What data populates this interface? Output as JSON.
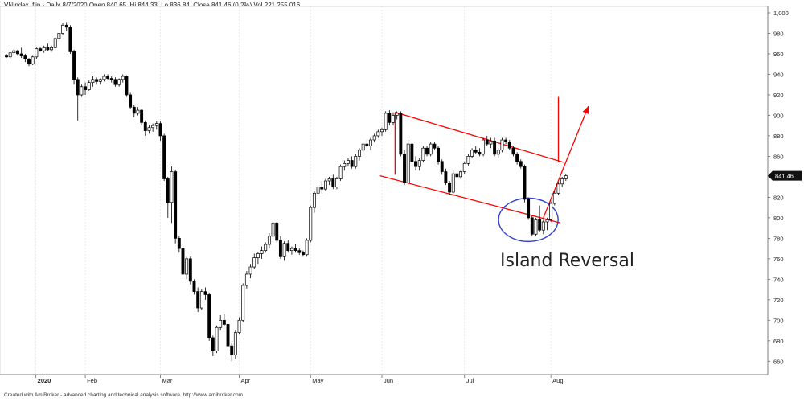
{
  "header": {
    "text": "VNIndex_fiin - Daily 8/7/2020 Open 840.65, Hi 844.33, Lo 836.84, Close 841.46 (0.2%) Vol 221,255,016"
  },
  "footer": {
    "text": "Created with AmiBroker - advanced charting and technical analysis software. http://www.amibroker.com"
  },
  "chart_data": {
    "type": "candlestick",
    "symbol": "VNIndex_fiin",
    "y_ticks": [
      "1,000",
      "980",
      "960",
      "940",
      "920",
      "900",
      "880",
      "860",
      "840",
      "820",
      "800",
      "780",
      "760",
      "740",
      "720",
      "700",
      "680",
      "660"
    ],
    "x_labels": [
      {
        "label": "2020",
        "index": 4
      },
      {
        "label": "Feb",
        "index": 21
      },
      {
        "label": "Mar",
        "index": 41
      },
      {
        "label": "Apr",
        "index": 62
      },
      {
        "label": "May",
        "index": 81
      },
      {
        "label": "Jun",
        "index": 100
      },
      {
        "label": "Jul",
        "index": 122
      },
      {
        "label": "Aug",
        "index": 145
      }
    ],
    "ylim": [
      650,
      1000
    ],
    "last_price_label": "841.46",
    "annotation": "Island Reversal",
    "colors": {
      "up": "#ffffff",
      "down": "#000000",
      "trendline": "#ff0000",
      "circle": "#3344cc"
    },
    "candles": [
      [
        958,
        960,
        956,
        957
      ],
      [
        957,
        962,
        955,
        961
      ],
      [
        961,
        965,
        958,
        963
      ],
      [
        963,
        964,
        958,
        960
      ],
      [
        960,
        966,
        956,
        958
      ],
      [
        958,
        960,
        952,
        955
      ],
      [
        955,
        956,
        948,
        950
      ],
      [
        950,
        958,
        949,
        957
      ],
      [
        957,
        966,
        955,
        965
      ],
      [
        965,
        967,
        962,
        963
      ],
      [
        963,
        968,
        961,
        966
      ],
      [
        966,
        970,
        963,
        964
      ],
      [
        964,
        968,
        962,
        966
      ],
      [
        966,
        976,
        965,
        975
      ],
      [
        975,
        981,
        972,
        980
      ],
      [
        980,
        990,
        978,
        988
      ],
      [
        988,
        991,
        982,
        986
      ],
      [
        986,
        988,
        960,
        962
      ],
      [
        962,
        964,
        930,
        935
      ],
      [
        935,
        937,
        895,
        920
      ],
      [
        920,
        930,
        918,
        928
      ],
      [
        928,
        932,
        920,
        925
      ],
      [
        925,
        934,
        924,
        932
      ],
      [
        932,
        938,
        928,
        935
      ],
      [
        935,
        937,
        930,
        933
      ],
      [
        933,
        936,
        930,
        935
      ],
      [
        935,
        940,
        933,
        938
      ],
      [
        938,
        940,
        934,
        936
      ],
      [
        936,
        938,
        932,
        935
      ],
      [
        935,
        937,
        928,
        930
      ],
      [
        930,
        936,
        928,
        935
      ],
      [
        935,
        940,
        932,
        938
      ],
      [
        938,
        939,
        918,
        920
      ],
      [
        920,
        922,
        906,
        908
      ],
      [
        908,
        910,
        898,
        902
      ],
      [
        902,
        908,
        900,
        905
      ],
      [
        905,
        906,
        890,
        893
      ],
      [
        893,
        895,
        880,
        885
      ],
      [
        885,
        890,
        882,
        888
      ],
      [
        888,
        892,
        884,
        890
      ],
      [
        890,
        894,
        886,
        892
      ],
      [
        892,
        894,
        875,
        880
      ],
      [
        880,
        882,
        836,
        838
      ],
      [
        838,
        840,
        800,
        815
      ],
      [
        815,
        850,
        795,
        845
      ],
      [
        845,
        847,
        775,
        780
      ],
      [
        780,
        782,
        766,
        770
      ],
      [
        770,
        772,
        740,
        745
      ],
      [
        745,
        762,
        740,
        760
      ],
      [
        760,
        762,
        735,
        738
      ],
      [
        738,
        740,
        725,
        728
      ],
      [
        728,
        732,
        708,
        712
      ],
      [
        712,
        730,
        710,
        728
      ],
      [
        728,
        732,
        720,
        725
      ],
      [
        725,
        727,
        680,
        683
      ],
      [
        683,
        685,
        665,
        670
      ],
      [
        670,
        695,
        668,
        693
      ],
      [
        693,
        705,
        690,
        700
      ],
      [
        700,
        706,
        694,
        696
      ],
      [
        696,
        698,
        670,
        675
      ],
      [
        675,
        678,
        660,
        666
      ],
      [
        666,
        690,
        662,
        688
      ],
      [
        688,
        703,
        686,
        700
      ],
      [
        700,
        736,
        698,
        734
      ],
      [
        734,
        748,
        731,
        745
      ],
      [
        745,
        755,
        741,
        752
      ],
      [
        752,
        765,
        750,
        761
      ],
      [
        761,
        767,
        755,
        765
      ],
      [
        765,
        772,
        760,
        768
      ],
      [
        768,
        776,
        766,
        774
      ],
      [
        774,
        785,
        770,
        782
      ],
      [
        782,
        797,
        778,
        795
      ],
      [
        795,
        796,
        776,
        778
      ],
      [
        778,
        782,
        760,
        762
      ],
      [
        762,
        777,
        758,
        775
      ],
      [
        775,
        778,
        766,
        768
      ],
      [
        768,
        772,
        764,
        770
      ],
      [
        770,
        774,
        766,
        768
      ],
      [
        768,
        770,
        764,
        766
      ],
      [
        766,
        768,
        762,
        764
      ],
      [
        764,
        780,
        762,
        778
      ],
      [
        778,
        812,
        776,
        810
      ],
      [
        810,
        826,
        805,
        824
      ],
      [
        824,
        832,
        820,
        830
      ],
      [
        830,
        836,
        824,
        828
      ],
      [
        828,
        838,
        826,
        836
      ],
      [
        836,
        840,
        832,
        838
      ],
      [
        838,
        842,
        828,
        830
      ],
      [
        830,
        840,
        828,
        838
      ],
      [
        838,
        852,
        836,
        850
      ],
      [
        850,
        856,
        846,
        853
      ],
      [
        853,
        858,
        850,
        856
      ],
      [
        856,
        860,
        848,
        850
      ],
      [
        850,
        862,
        848,
        860
      ],
      [
        860,
        868,
        856,
        866
      ],
      [
        866,
        874,
        862,
        872
      ],
      [
        872,
        876,
        868,
        870
      ],
      [
        870,
        878,
        866,
        876
      ],
      [
        876,
        882,
        874,
        880
      ],
      [
        880,
        886,
        878,
        884
      ],
      [
        884,
        888,
        880,
        886
      ],
      [
        886,
        904,
        884,
        902
      ],
      [
        902,
        905,
        890,
        893
      ],
      [
        893,
        903,
        890,
        900
      ],
      [
        900,
        904,
        896,
        902
      ],
      [
        902,
        904,
        860,
        862
      ],
      [
        862,
        866,
        832,
        834
      ],
      [
        834,
        876,
        832,
        872
      ],
      [
        872,
        874,
        852,
        855
      ],
      [
        855,
        860,
        846,
        850
      ],
      [
        850,
        858,
        846,
        856
      ],
      [
        856,
        870,
        854,
        868
      ],
      [
        868,
        870,
        860,
        862
      ],
      [
        862,
        874,
        860,
        872
      ],
      [
        872,
        874,
        866,
        868
      ],
      [
        868,
        870,
        852,
        855
      ],
      [
        855,
        857,
        842,
        845
      ],
      [
        845,
        848,
        832,
        834
      ],
      [
        834,
        836,
        822,
        825
      ],
      [
        825,
        846,
        823,
        843
      ],
      [
        843,
        848,
        838,
        840
      ],
      [
        840,
        846,
        838,
        845
      ],
      [
        845,
        855,
        843,
        853
      ],
      [
        853,
        862,
        851,
        860
      ],
      [
        860,
        868,
        858,
        866
      ],
      [
        866,
        870,
        862,
        864
      ],
      [
        864,
        868,
        860,
        862
      ],
      [
        862,
        878,
        860,
        876
      ],
      [
        876,
        880,
        870,
        872
      ],
      [
        872,
        878,
        868,
        875
      ],
      [
        875,
        878,
        860,
        862
      ],
      [
        862,
        868,
        858,
        866
      ],
      [
        866,
        878,
        864,
        876
      ],
      [
        876,
        878,
        872,
        874
      ],
      [
        874,
        876,
        866,
        868
      ],
      [
        868,
        870,
        860,
        862
      ],
      [
        862,
        864,
        852,
        855
      ],
      [
        855,
        857,
        848,
        850
      ],
      [
        850,
        852,
        815,
        818
      ],
      [
        818,
        820,
        798,
        800
      ],
      [
        800,
        802,
        782,
        784
      ],
      [
        784,
        800,
        782,
        798
      ],
      [
        798,
        812,
        786,
        788
      ],
      [
        788,
        798,
        784,
        796
      ],
      [
        796,
        800,
        788,
        798
      ],
      [
        798,
        816,
        796,
        814
      ],
      [
        814,
        826,
        812,
        824
      ],
      [
        824,
        835,
        822,
        833
      ],
      [
        833,
        840,
        830,
        838
      ],
      [
        838,
        843,
        836,
        841
      ]
    ],
    "overlays": {
      "channel_upper": [
        [
          103.5,
          903
        ],
        [
          148.5,
          854
        ]
      ],
      "channel_lower": [
        [
          99.5,
          841
        ],
        [
          147.5,
          795
        ]
      ],
      "channel_left_edge": [
        [
          103.5,
          903
        ],
        [
          103.5,
          842
        ]
      ],
      "target_vertical": [
        [
          147,
          854
        ],
        [
          147,
          918
        ]
      ],
      "breakout_arrow": [
        [
          143,
          800
        ],
        [
          155,
          909
        ]
      ],
      "island_circle": {
        "cx_index": 139,
        "cy": 798,
        "ry_value": 18
      }
    }
  }
}
